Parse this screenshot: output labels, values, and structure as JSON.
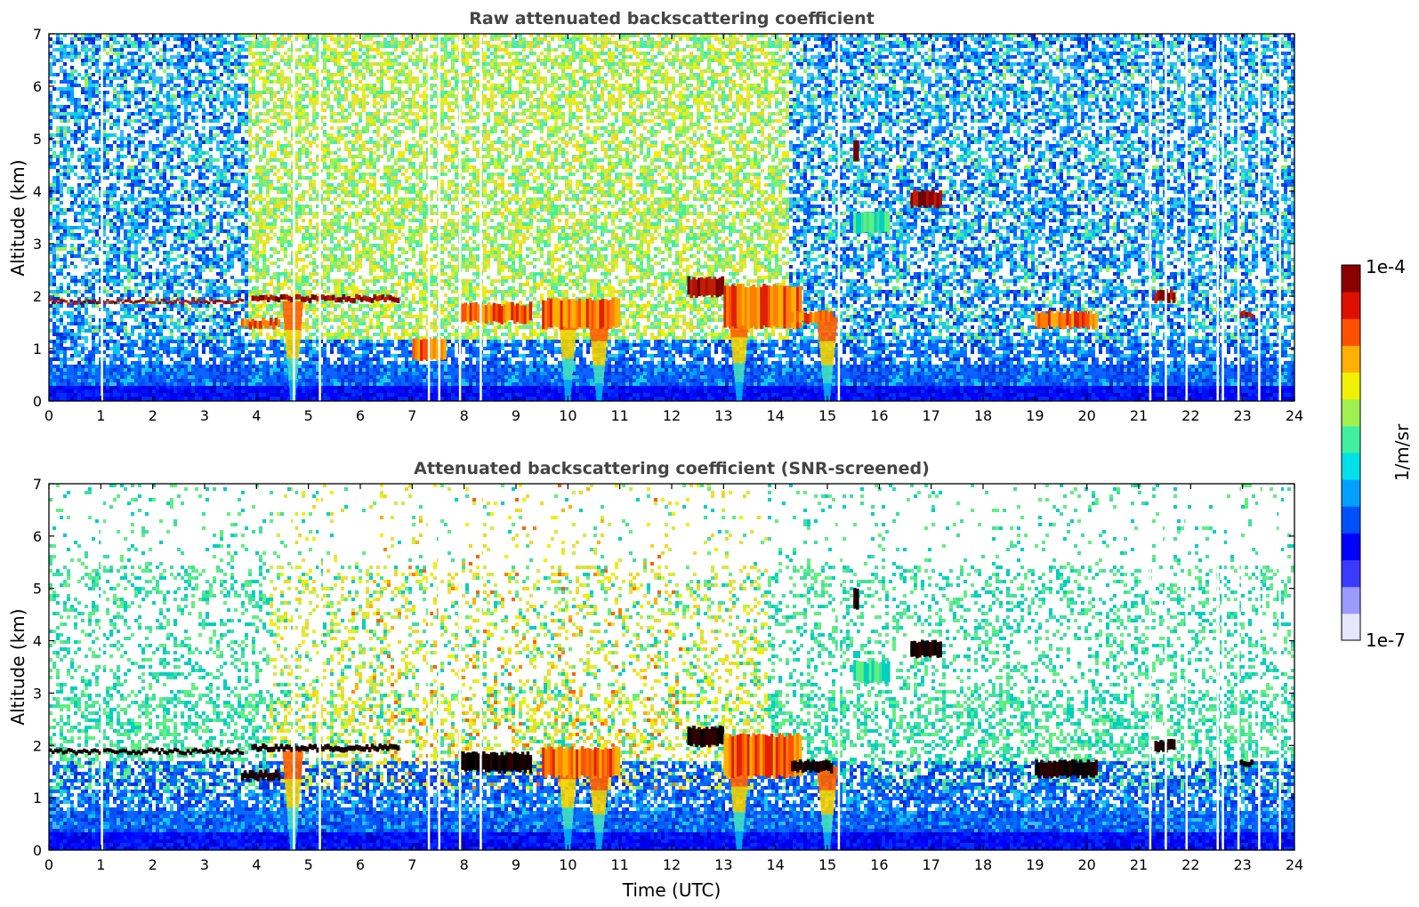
{
  "chart_data": [
    {
      "type": "heatmap",
      "id": "top",
      "title": "Raw attenuated backscattering coefficient",
      "xlabel": "",
      "ylabel": "Altitude (km)",
      "xlim": [
        0,
        24
      ],
      "ylim": [
        0,
        7
      ],
      "xticks": [
        "0",
        "1",
        "2",
        "3",
        "4",
        "5",
        "6",
        "7",
        "8",
        "9",
        "10",
        "11",
        "12",
        "13",
        "14",
        "15",
        "16",
        "17",
        "18",
        "19",
        "20",
        "21",
        "22",
        "23",
        "24"
      ],
      "yticks": [
        "0",
        "1",
        "2",
        "3",
        "4",
        "5",
        "6",
        "7"
      ],
      "background_noise": "raw",
      "cloud_layers": [
        {
          "t": [
            0.0,
            3.7
          ],
          "alt": [
            1.88,
            1.92
          ],
          "level": "max"
        },
        {
          "t": [
            3.9,
            6.7
          ],
          "alt": [
            1.9,
            2.0
          ],
          "level": "max"
        },
        {
          "t": [
            3.7,
            4.4
          ],
          "alt": [
            1.4,
            1.55
          ],
          "level": "high"
        },
        {
          "t": [
            7.0,
            7.6
          ],
          "alt": [
            0.8,
            1.2
          ],
          "level": "high"
        },
        {
          "t": [
            7.9,
            9.3
          ],
          "alt": [
            1.5,
            1.85
          ],
          "level": "high"
        },
        {
          "t": [
            9.5,
            11.0
          ],
          "alt": [
            1.4,
            1.95
          ],
          "level": "high"
        },
        {
          "t": [
            12.3,
            13.0
          ],
          "alt": [
            2.0,
            2.35
          ],
          "level": "max"
        },
        {
          "t": [
            13.0,
            14.5
          ],
          "alt": [
            1.4,
            2.2
          ],
          "level": "high"
        },
        {
          "t": [
            14.3,
            15.1
          ],
          "alt": [
            1.5,
            1.7
          ],
          "level": "high"
        },
        {
          "t": [
            15.5,
            15.6
          ],
          "alt": [
            4.6,
            5.0
          ],
          "level": "max"
        },
        {
          "t": [
            16.6,
            17.2
          ],
          "alt": [
            3.7,
            4.0
          ],
          "level": "max"
        },
        {
          "t": [
            15.5,
            16.2
          ],
          "alt": [
            3.2,
            3.6
          ],
          "level": "mid"
        },
        {
          "t": [
            19.0,
            20.2
          ],
          "alt": [
            1.4,
            1.7
          ],
          "level": "high"
        },
        {
          "t": [
            21.3,
            21.7
          ],
          "alt": [
            1.9,
            2.1
          ],
          "level": "max"
        },
        {
          "t": [
            22.9,
            23.2
          ],
          "alt": [
            1.6,
            1.7
          ],
          "level": "max"
        }
      ],
      "plumes": [
        {
          "t": 10.0,
          "alt_top": 1.9
        },
        {
          "t": 10.6,
          "alt_top": 1.6
        },
        {
          "t": 13.3,
          "alt_top": 1.7
        },
        {
          "t": 15.0,
          "alt_top": 1.6
        },
        {
          "t": 4.7,
          "alt_top": 1.9
        }
      ],
      "data_gaps_utc": [
        1.0,
        4.7,
        5.2,
        7.3,
        7.5,
        7.9,
        8.3,
        15.2,
        21.2,
        21.5,
        21.9,
        22.5,
        22.6,
        22.9,
        23.3,
        23.7
      ]
    },
    {
      "type": "heatmap",
      "id": "bottom",
      "title": "Attenuated backscattering coefficient (SNR-screened)",
      "xlabel": "Time (UTC)",
      "ylabel": "Altitude (km)",
      "xlim": [
        0,
        24
      ],
      "ylim": [
        0,
        7
      ],
      "xticks": [
        "0",
        "1",
        "2",
        "3",
        "4",
        "5",
        "6",
        "7",
        "8",
        "9",
        "10",
        "11",
        "12",
        "13",
        "14",
        "15",
        "16",
        "17",
        "18",
        "19",
        "20",
        "21",
        "22",
        "23",
        "24"
      ],
      "yticks": [
        "0",
        "1",
        "2",
        "3",
        "4",
        "5",
        "6",
        "7"
      ],
      "background_noise": "screened",
      "cloud_layers": [
        {
          "t": [
            0.0,
            3.7
          ],
          "alt": [
            1.85,
            1.92
          ],
          "level": "black"
        },
        {
          "t": [
            3.9,
            6.7
          ],
          "alt": [
            1.9,
            2.0
          ],
          "level": "black"
        },
        {
          "t": [
            3.7,
            4.4
          ],
          "alt": [
            1.35,
            1.5
          ],
          "level": "black"
        },
        {
          "t": [
            7.9,
            9.3
          ],
          "alt": [
            1.5,
            1.85
          ],
          "level": "black"
        },
        {
          "t": [
            9.5,
            11.0
          ],
          "alt": [
            1.4,
            1.95
          ],
          "level": "high"
        },
        {
          "t": [
            12.3,
            13.0
          ],
          "alt": [
            2.0,
            2.35
          ],
          "level": "black"
        },
        {
          "t": [
            13.0,
            14.5
          ],
          "alt": [
            1.4,
            2.2
          ],
          "level": "high"
        },
        {
          "t": [
            14.3,
            15.1
          ],
          "alt": [
            1.5,
            1.7
          ],
          "level": "black"
        },
        {
          "t": [
            15.5,
            15.6
          ],
          "alt": [
            4.6,
            5.0
          ],
          "level": "black"
        },
        {
          "t": [
            16.6,
            17.2
          ],
          "alt": [
            3.7,
            4.0
          ],
          "level": "black"
        },
        {
          "t": [
            15.5,
            16.2
          ],
          "alt": [
            3.2,
            3.6
          ],
          "level": "mid"
        },
        {
          "t": [
            19.0,
            20.2
          ],
          "alt": [
            1.4,
            1.7
          ],
          "level": "black"
        },
        {
          "t": [
            21.3,
            21.7
          ],
          "alt": [
            1.9,
            2.1
          ],
          "level": "black"
        },
        {
          "t": [
            22.9,
            23.2
          ],
          "alt": [
            1.6,
            1.7
          ],
          "level": "black"
        }
      ],
      "plumes": [
        {
          "t": 10.0,
          "alt_top": 1.9
        },
        {
          "t": 10.6,
          "alt_top": 1.6
        },
        {
          "t": 13.3,
          "alt_top": 1.7
        },
        {
          "t": 15.0,
          "alt_top": 1.6
        },
        {
          "t": 4.7,
          "alt_top": 1.9
        }
      ],
      "data_gaps_utc": [
        1.0,
        4.7,
        5.2,
        7.3,
        7.5,
        7.9,
        8.3,
        15.2,
        21.2,
        21.5,
        21.9,
        22.5,
        22.6,
        22.9,
        23.3,
        23.7
      ]
    }
  ],
  "colorbar": {
    "label": "1/m/sr",
    "max_label": "1e-4",
    "min_label": "1e-7",
    "colors": [
      "#e6e6ff",
      "#9a9aff",
      "#3b3bff",
      "#0000ff",
      "#0050ff",
      "#00a0ff",
      "#00e0e8",
      "#40f0a0",
      "#a0f050",
      "#f0f000",
      "#ffb000",
      "#ff5000",
      "#e01000",
      "#8b0000"
    ]
  }
}
